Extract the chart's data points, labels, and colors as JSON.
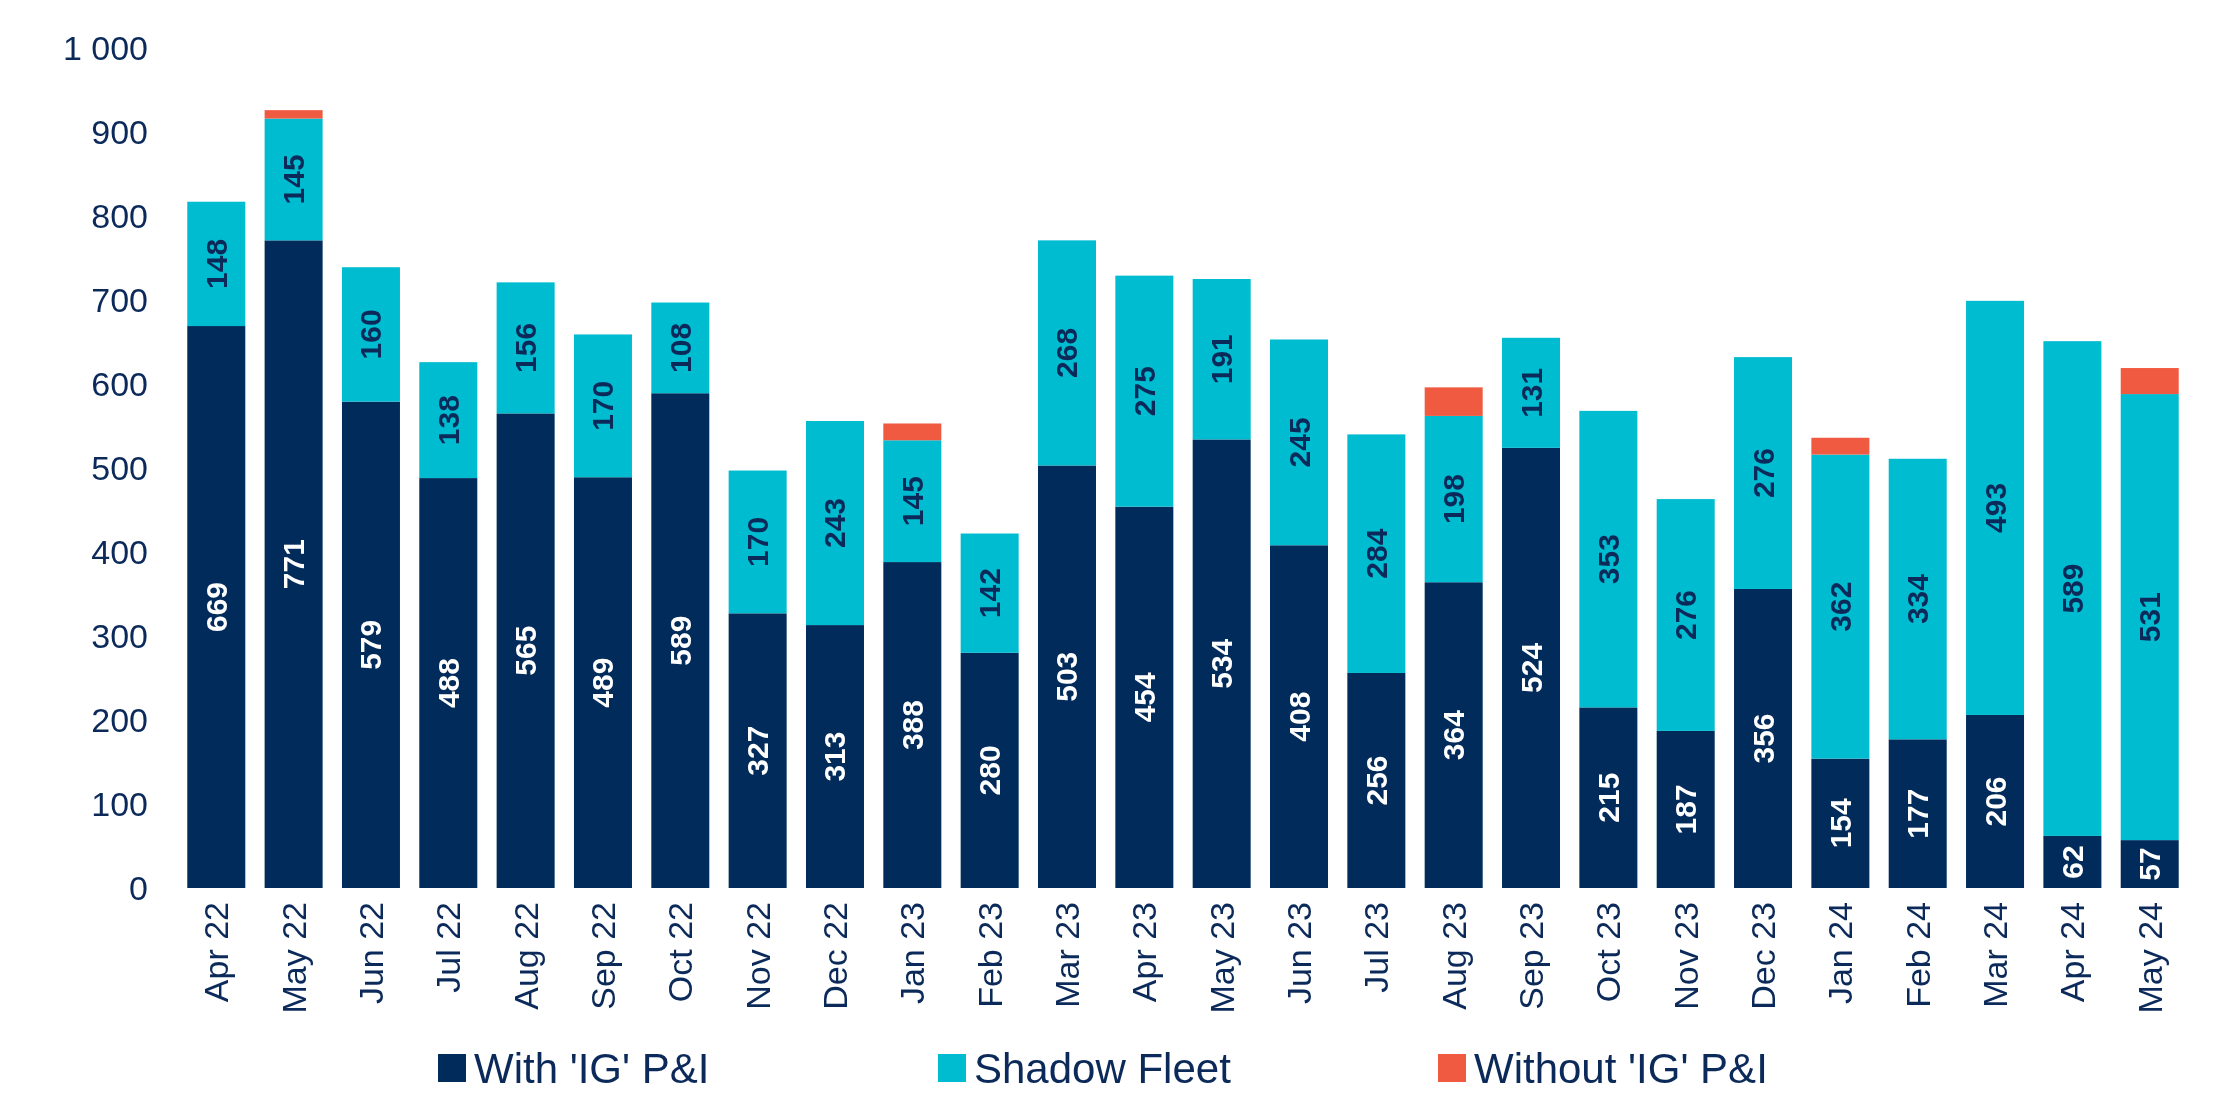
{
  "chart_data": {
    "type": "bar",
    "stacked": true,
    "categories": [
      "Apr 22",
      "May 22",
      "Jun 22",
      "Jul 22",
      "Aug 22",
      "Sep 22",
      "Oct 22",
      "Nov 22",
      "Dec 22",
      "Jan 23",
      "Feb 23",
      "Mar 23",
      "Apr 23",
      "May 23",
      "Jun 23",
      "Jul 23",
      "Aug 23",
      "Sep 23",
      "Oct 23",
      "Nov 23",
      "Dec 23",
      "Jan 24",
      "Feb 24",
      "Mar 24",
      "Apr 24",
      "May 24"
    ],
    "series": [
      {
        "name": "With 'IG' P&I",
        "color": "#002b5a",
        "values": [
          669,
          771,
          579,
          488,
          565,
          489,
          589,
          327,
          313,
          388,
          280,
          503,
          454,
          534,
          408,
          256,
          364,
          524,
          215,
          187,
          356,
          154,
          177,
          206,
          62,
          57
        ],
        "value_labels": [
          "669",
          "771",
          "579",
          "488",
          "565",
          "489",
          "589",
          "327",
          "313",
          "388",
          "280",
          "503",
          "454",
          "534",
          "408",
          "256",
          "364",
          "524",
          "215",
          "187",
          "356",
          "154",
          "177",
          "206",
          "62",
          "57"
        ]
      },
      {
        "name": "Shadow Fleet",
        "color": "#00bcd0",
        "values": [
          148,
          145,
          160,
          138,
          156,
          170,
          108,
          170,
          243,
          145,
          142,
          268,
          275,
          191,
          245,
          284,
          198,
          131,
          353,
          276,
          276,
          362,
          334,
          493,
          589,
          531
        ],
        "value_labels": [
          "148",
          "145",
          "160",
          "138",
          "156",
          "170",
          "108",
          "170",
          "243",
          "145",
          "142",
          "268",
          "275",
          "191",
          "245",
          "284",
          "198",
          "131",
          "353",
          "276",
          "276",
          "362",
          "334",
          "493",
          "589",
          "531"
        ]
      },
      {
        "name": "Without 'IG' P&I",
        "color": "#f05a40",
        "values": [
          null,
          10,
          null,
          null,
          null,
          null,
          null,
          null,
          null,
          20,
          null,
          null,
          null,
          null,
          null,
          null,
          34,
          null,
          null,
          null,
          null,
          20,
          null,
          null,
          null,
          31
        ]
      }
    ],
    "ylim": [
      0,
      1000
    ],
    "yticks": [
      0,
      100,
      200,
      300,
      400,
      500,
      600,
      700,
      800,
      900,
      {
        "value": 1000,
        "label": "1 000"
      }
    ],
    "grid": false,
    "legend": "bottom"
  }
}
